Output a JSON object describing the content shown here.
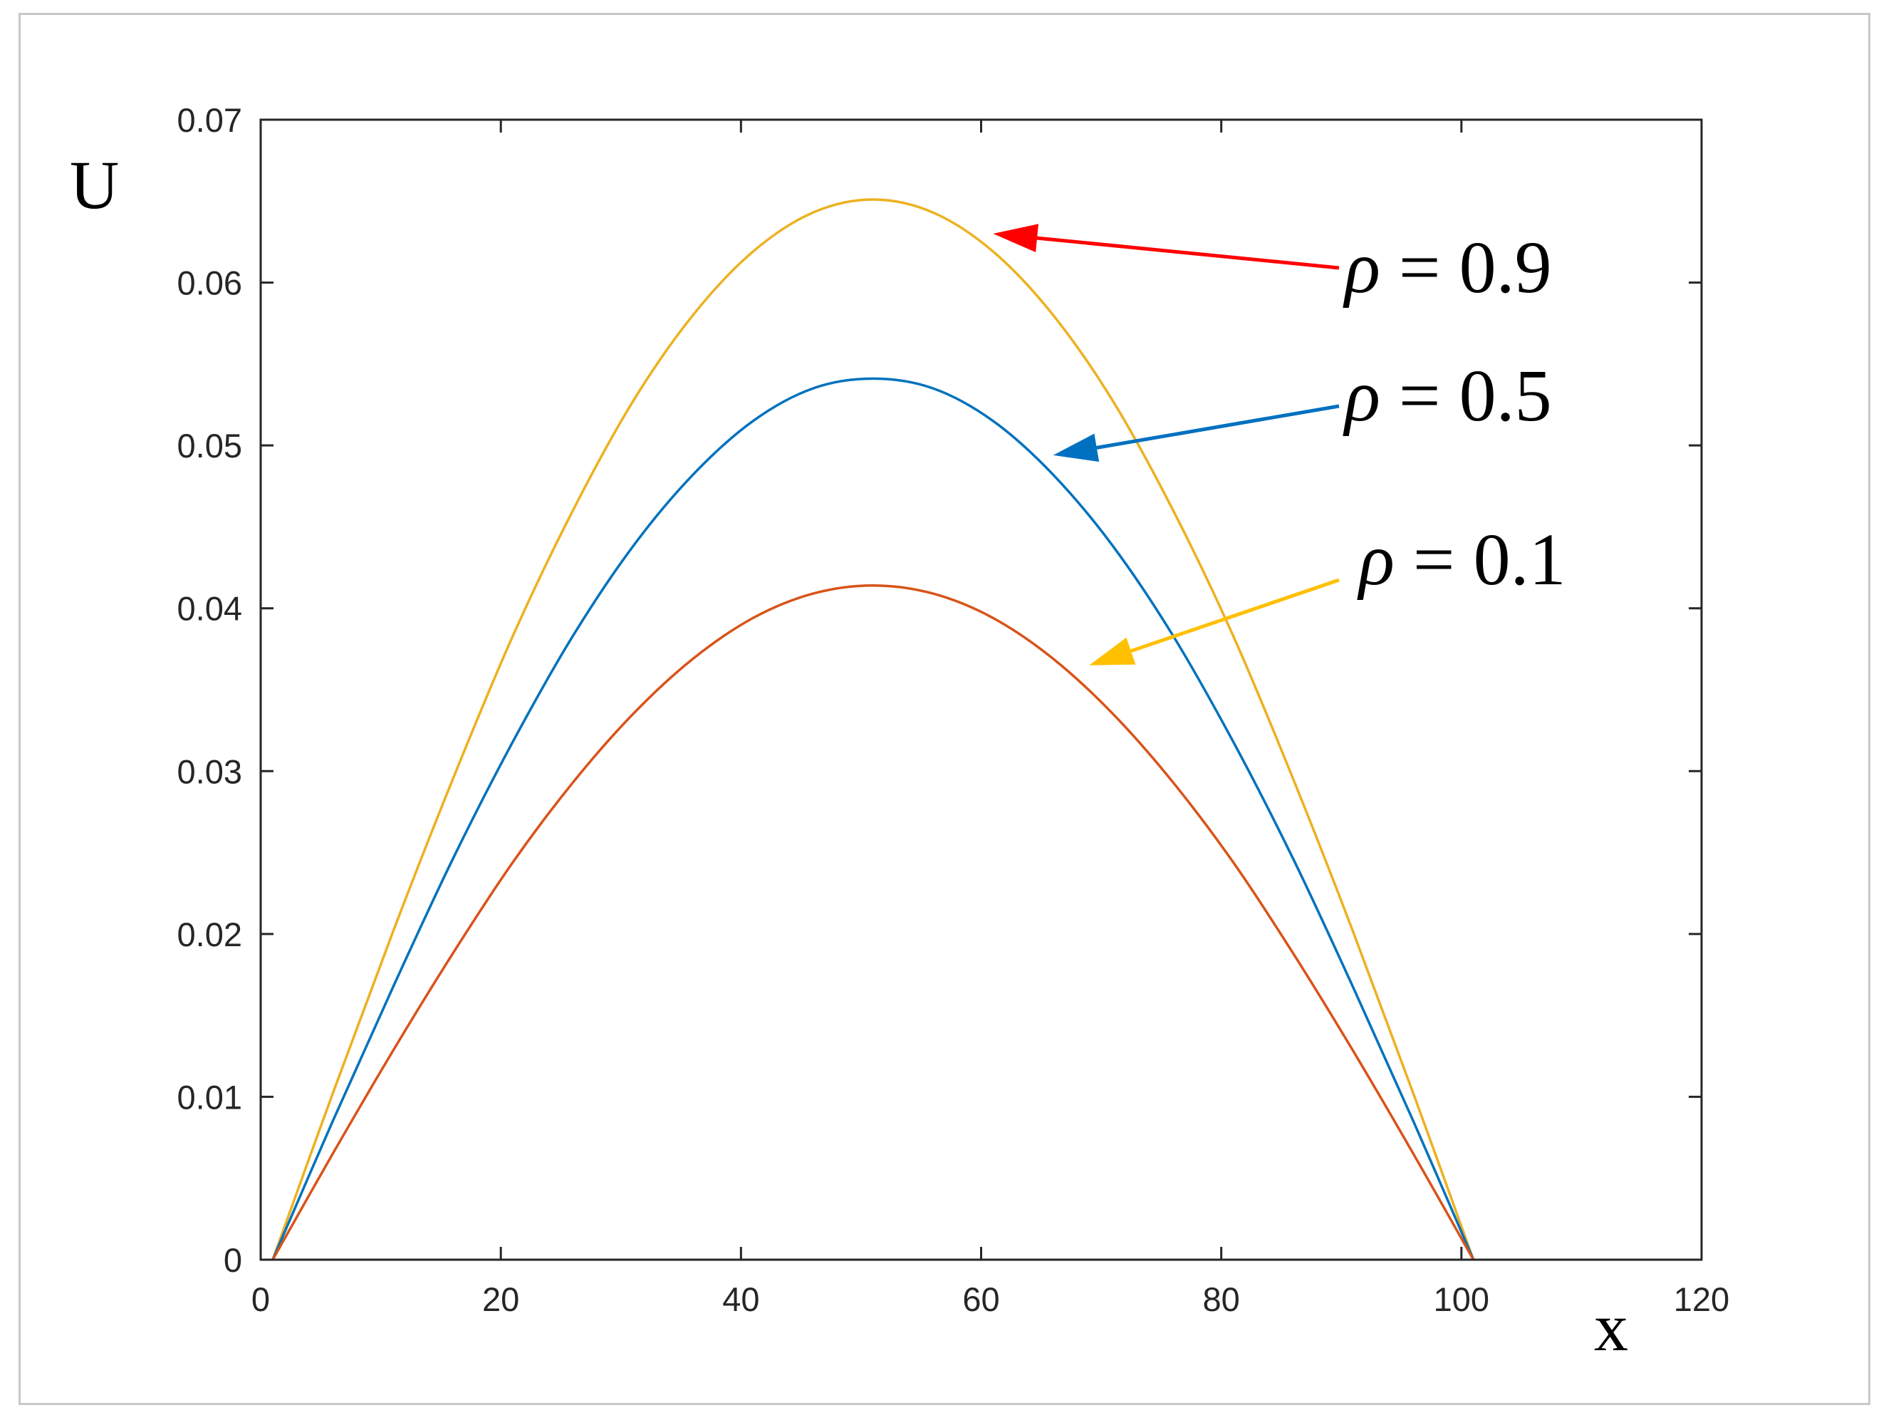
{
  "chart_data": {
    "type": "line",
    "xlabel": "x",
    "ylabel": "U",
    "xlim": [
      0,
      120
    ],
    "ylim": [
      0,
      0.07
    ],
    "x_ticks": [
      0,
      20,
      40,
      60,
      80,
      100,
      120
    ],
    "y_ticks": [
      0,
      0.01,
      0.02,
      0.03,
      0.04,
      0.05,
      0.06,
      0.07
    ],
    "x_tick_labels": [
      "0",
      "20",
      "40",
      "60",
      "80",
      "100",
      "120"
    ],
    "y_tick_labels": [
      "0",
      "0.01",
      "0.02",
      "0.03",
      "0.04",
      "0.05",
      "0.06",
      "0.07"
    ],
    "grid": false,
    "series": [
      {
        "color": "#edb120",
        "x": [
          1,
          6,
          11,
          16,
          21,
          26,
          31,
          36,
          41,
          46,
          51,
          56,
          61,
          66,
          71,
          76,
          81,
          86,
          91,
          96,
          101
        ],
        "values": [
          0,
          0.0102,
          0.0201,
          0.0295,
          0.0383,
          0.046,
          0.0527,
          0.058,
          0.0619,
          0.0643,
          0.0651,
          0.0643,
          0.0619,
          0.058,
          0.0527,
          0.046,
          0.0383,
          0.0295,
          0.0201,
          0.0102,
          0
        ]
      },
      {
        "color": "#0072bd",
        "x": [
          1,
          6,
          11,
          16,
          21,
          26,
          31,
          36,
          41,
          46,
          51,
          56,
          61,
          66,
          71,
          76,
          81,
          86,
          91,
          96,
          101
        ],
        "values": [
          0,
          0.0085,
          0.0167,
          0.0246,
          0.0318,
          0.0383,
          0.0438,
          0.0482,
          0.0515,
          0.0535,
          0.0541,
          0.0535,
          0.0515,
          0.0482,
          0.0438,
          0.0383,
          0.0318,
          0.0246,
          0.0167,
          0.0085,
          0
        ]
      },
      {
        "color": "#d95319",
        "x": [
          1,
          6,
          11,
          16,
          21,
          26,
          31,
          36,
          41,
          46,
          51,
          56,
          61,
          66,
          71,
          76,
          81,
          86,
          91,
          96,
          101
        ],
        "values": [
          0,
          0.0065,
          0.0128,
          0.0188,
          0.0244,
          0.0293,
          0.0335,
          0.0369,
          0.0394,
          0.0409,
          0.0414,
          0.0409,
          0.0394,
          0.0369,
          0.0335,
          0.0293,
          0.0244,
          0.0188,
          0.0128,
          0.0065,
          0
        ]
      }
    ],
    "annotations": [
      {
        "symbol": "ρ",
        "text": " = 0.9",
        "arrow_color": "#ff0000",
        "target": [
          61,
          0.063
        ]
      },
      {
        "symbol": "ρ",
        "text": " = 0.5",
        "arrow_color": "#0070c0",
        "target": [
          66,
          0.0494
        ]
      },
      {
        "symbol": "ρ",
        "text": " = 0.1",
        "arrow_color": "#ffc000",
        "target": [
          69,
          0.0365
        ]
      }
    ]
  }
}
